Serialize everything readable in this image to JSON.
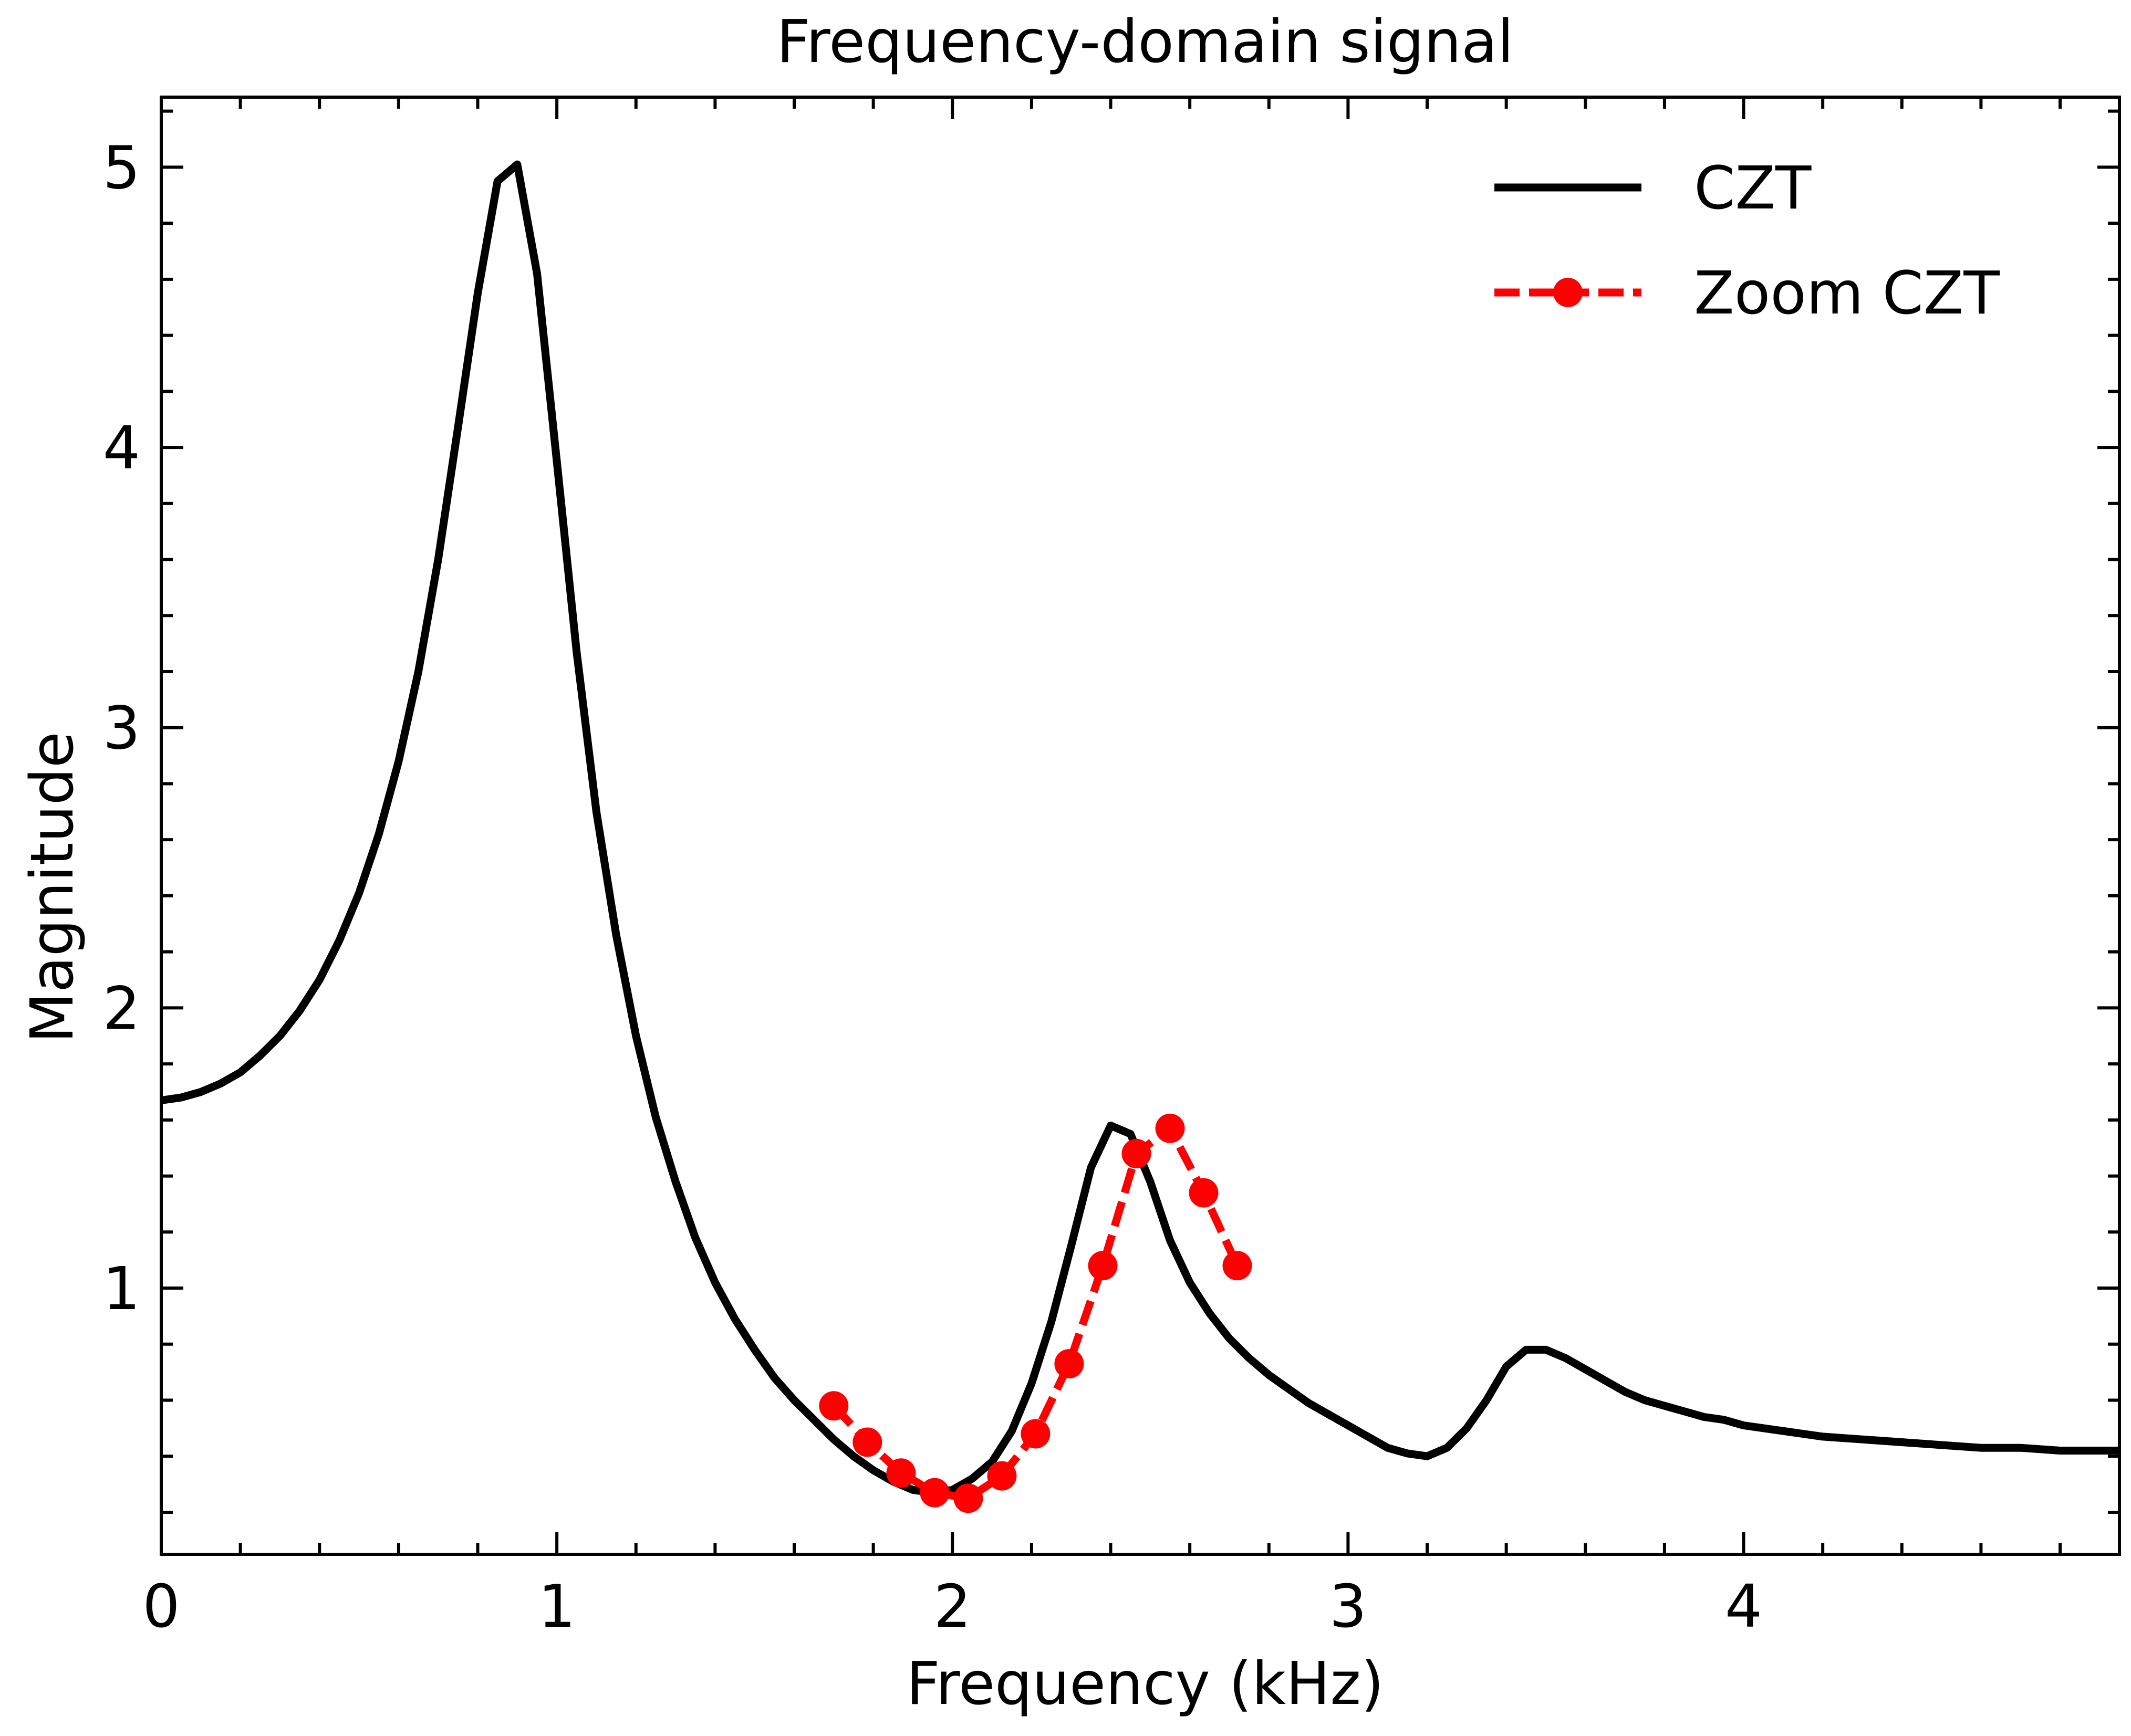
{
  "colors": {
    "background": "#ffffff",
    "czt_line": "#000000",
    "zoom_line": "#ff0000",
    "axes": "#000000"
  },
  "chart_data": {
    "type": "line",
    "title": "Frequency-domain signal",
    "xlabel": "Frequency (kHz)",
    "ylabel": "Magnitude",
    "xlim": [
      0,
      4.95
    ],
    "ylim": [
      0.05,
      5.25
    ],
    "xticks": [
      {
        "value": 0,
        "label": "0"
      },
      {
        "value": 1,
        "label": "1"
      },
      {
        "value": 2,
        "label": "2"
      },
      {
        "value": 3,
        "label": "3"
      },
      {
        "value": 4,
        "label": "4"
      }
    ],
    "yticks": [
      {
        "value": 1,
        "label": "1"
      },
      {
        "value": 2,
        "label": "2"
      },
      {
        "value": 3,
        "label": "3"
      },
      {
        "value": 4,
        "label": "4"
      },
      {
        "value": 5,
        "label": "5"
      }
    ],
    "x_minor_step": 0.2,
    "y_minor_step": 0.2,
    "legend_position": "top-right",
    "series": [
      {
        "name": "CZT",
        "style": "solid",
        "color": "#000000",
        "x": [
          0,
          0.05,
          0.1,
          0.15,
          0.2,
          0.25,
          0.3,
          0.35,
          0.4,
          0.45,
          0.5,
          0.55,
          0.6,
          0.65,
          0.7,
          0.75,
          0.8,
          0.85,
          0.9,
          0.95,
          1.0,
          1.05,
          1.1,
          1.15,
          1.2,
          1.25,
          1.3,
          1.35,
          1.4,
          1.45,
          1.5,
          1.55,
          1.6,
          1.65,
          1.7,
          1.75,
          1.8,
          1.85,
          1.9,
          1.95,
          2.0,
          2.05,
          2.1,
          2.15,
          2.2,
          2.25,
          2.3,
          2.35,
          2.4,
          2.45,
          2.5,
          2.55,
          2.6,
          2.65,
          2.7,
          2.75,
          2.8,
          2.85,
          2.9,
          2.95,
          3.0,
          3.05,
          3.1,
          3.15,
          3.2,
          3.25,
          3.3,
          3.35,
          3.4,
          3.45,
          3.5,
          3.55,
          3.6,
          3.65,
          3.7,
          3.75,
          3.8,
          3.85,
          3.9,
          3.95,
          4.0,
          4.1,
          4.2,
          4.3,
          4.4,
          4.5,
          4.6,
          4.7,
          4.8,
          4.95
        ],
        "values": [
          1.67,
          1.68,
          1.7,
          1.73,
          1.77,
          1.83,
          1.9,
          1.99,
          2.1,
          2.24,
          2.41,
          2.62,
          2.88,
          3.2,
          3.6,
          4.07,
          4.55,
          4.95,
          5.01,
          4.62,
          3.95,
          3.27,
          2.7,
          2.26,
          1.9,
          1.61,
          1.38,
          1.18,
          1.02,
          0.89,
          0.78,
          0.68,
          0.6,
          0.53,
          0.46,
          0.4,
          0.35,
          0.31,
          0.28,
          0.27,
          0.28,
          0.32,
          0.38,
          0.49,
          0.66,
          0.88,
          1.15,
          1.43,
          1.58,
          1.55,
          1.38,
          1.17,
          1.02,
          0.91,
          0.82,
          0.75,
          0.69,
          0.64,
          0.59,
          0.55,
          0.51,
          0.47,
          0.43,
          0.41,
          0.4,
          0.43,
          0.5,
          0.6,
          0.72,
          0.78,
          0.78,
          0.75,
          0.71,
          0.67,
          0.63,
          0.6,
          0.58,
          0.56,
          0.54,
          0.53,
          0.51,
          0.49,
          0.47,
          0.46,
          0.45,
          0.44,
          0.43,
          0.43,
          0.42,
          0.42
        ]
      },
      {
        "name": "Zoom CZT",
        "style": "dashed-markers",
        "color": "#ff0000",
        "x": [
          1.7,
          1.785,
          1.87,
          1.955,
          2.04,
          2.125,
          2.21,
          2.295,
          2.38,
          2.465,
          2.55,
          2.635,
          2.72
        ],
        "values": [
          0.58,
          0.45,
          0.34,
          0.27,
          0.25,
          0.33,
          0.48,
          0.73,
          1.08,
          1.48,
          1.57,
          1.34,
          1.08
        ]
      }
    ]
  }
}
